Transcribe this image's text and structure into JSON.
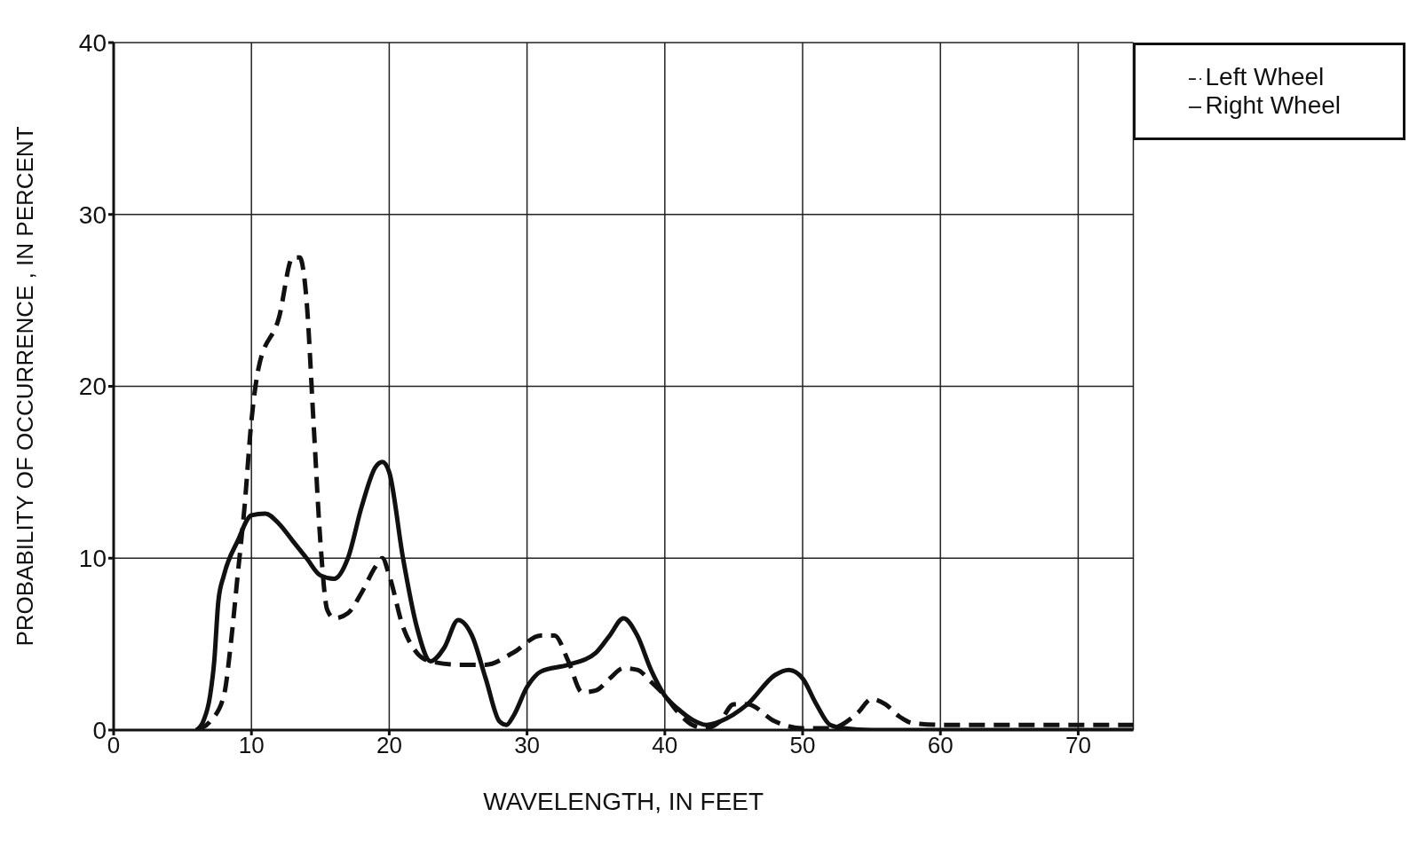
{
  "chart_data": {
    "type": "line",
    "xlabel": "WAVELENGTH, IN FEET",
    "ylabel": "PROBABILITY OF OCCURRENCE , IN PERCENT",
    "xlim": [
      0,
      74
    ],
    "ylim": [
      0,
      40
    ],
    "xticks": [
      0,
      10,
      20,
      30,
      40,
      50,
      60,
      70
    ],
    "yticks": [
      0,
      10,
      20,
      30,
      40
    ],
    "grid": true,
    "legend": "top right",
    "marker": "none",
    "series": [
      {
        "name": "Right Wheel",
        "color": "#111111",
        "line_style": "solid",
        "x": [
          6,
          6.5,
          7,
          7.3,
          7.6,
          8,
          9,
          10,
          11,
          12,
          13,
          14,
          15,
          16,
          17,
          18,
          19,
          19.5,
          20,
          21,
          22,
          23,
          24,
          25,
          26,
          27,
          28,
          28.5,
          29,
          30,
          31,
          33,
          35,
          36,
          37,
          38,
          39,
          40,
          41,
          42,
          43,
          44,
          46,
          48,
          49,
          50,
          51,
          52,
          53,
          55,
          74
        ],
        "values": [
          0,
          0.5,
          2,
          4,
          7.5,
          9,
          11,
          12.5,
          12.6,
          12,
          11,
          10,
          9,
          8.8,
          10,
          13,
          15.3,
          15.6,
          15,
          10,
          6,
          4,
          4.8,
          6.4,
          5.5,
          3,
          0.5,
          0.3,
          0.8,
          2.5,
          3.4,
          3.8,
          4.5,
          5.5,
          6.5,
          5.5,
          3.5,
          2,
          1.2,
          0.6,
          0.3,
          0.5,
          1.5,
          3.2,
          3.5,
          3,
          1.5,
          0.3,
          0.1,
          0,
          0
        ]
      },
      {
        "name": "Left Wheel",
        "color": "#111111",
        "line_style": "dashed",
        "x": [
          6,
          7,
          8,
          8.5,
          9,
          9.5,
          10,
          10.5,
          12,
          13,
          13.5,
          14,
          14.5,
          15,
          15.5,
          16,
          17,
          18,
          19,
          19.5,
          20,
          21,
          22,
          23,
          25,
          27,
          29,
          31,
          32,
          33,
          34,
          35,
          36,
          37,
          38,
          39,
          40,
          41,
          42,
          43,
          44,
          45,
          46,
          48,
          50,
          52,
          54,
          55,
          56,
          57,
          58,
          60,
          74
        ],
        "values": [
          0,
          0.5,
          2,
          5,
          9,
          13,
          18,
          21,
          24,
          27.5,
          27.5,
          25,
          18,
          11,
          7,
          6.5,
          6.8,
          8,
          9.5,
          10,
          9,
          6,
          4.5,
          4,
          3.8,
          3.8,
          4.5,
          5.5,
          5.5,
          4,
          2.2,
          2.3,
          3,
          3.6,
          3.5,
          2.8,
          2,
          1,
          0.3,
          0.1,
          0.5,
          1.5,
          1.5,
          0.5,
          0.1,
          0.1,
          1,
          1.8,
          1.5,
          0.8,
          0.4,
          0.3,
          0.3
        ]
      }
    ]
  }
}
